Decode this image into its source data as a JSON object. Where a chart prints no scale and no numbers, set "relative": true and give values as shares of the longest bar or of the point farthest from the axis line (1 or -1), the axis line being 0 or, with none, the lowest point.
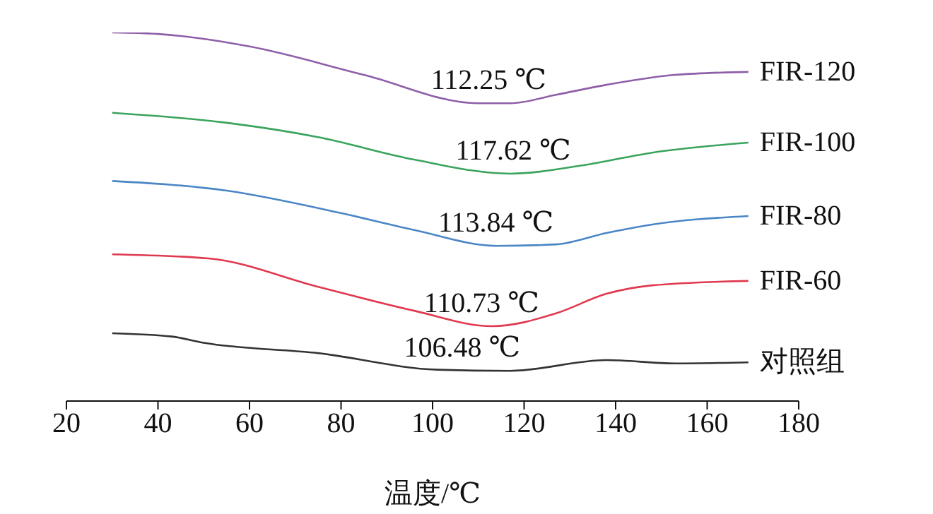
{
  "chart_data": {
    "type": "line",
    "relative": true,
    "xlabel": "温度/℃",
    "xlim": [
      20,
      180
    ],
    "xticks": [
      20,
      40,
      60,
      80,
      100,
      120,
      140,
      160,
      180
    ],
    "marker": "none",
    "line_style": "solid",
    "series": [
      {
        "name": "FIR-120",
        "color": "#8e5fa8",
        "x": [
          30,
          40,
          60,
          85,
          110,
          117,
          127,
          138,
          153,
          169
        ],
        "values": [
          1.0,
          0.996,
          0.962,
          0.885,
          0.808,
          0.808,
          0.831,
          0.858,
          0.885,
          0.893
        ]
      },
      {
        "name": "FIR-100",
        "color": "#3aa35c",
        "x": [
          30,
          55,
          75,
          96,
          117,
          133,
          148,
          169
        ],
        "values": [
          0.782,
          0.755,
          0.716,
          0.655,
          0.617,
          0.64,
          0.674,
          0.701
        ]
      },
      {
        "name": "FIR-80",
        "color": "#4a86c5",
        "x": [
          30,
          55,
          80,
          96,
          114,
          127,
          138,
          148,
          169
        ],
        "values": [
          0.597,
          0.571,
          0.51,
          0.464,
          0.421,
          0.425,
          0.456,
          0.479,
          0.502
        ]
      },
      {
        "name": "FIR-60",
        "color": "#e0394f",
        "x": [
          30,
          51,
          75,
          96,
          113,
          127,
          138,
          148,
          169
        ],
        "values": [
          0.398,
          0.387,
          0.31,
          0.245,
          0.203,
          0.238,
          0.291,
          0.314,
          0.326
        ]
      },
      {
        "name": "对照组",
        "color": "#333333",
        "x": [
          30,
          43,
          50,
          75,
          101,
          117,
          138,
          153,
          169
        ],
        "values": [
          0.184,
          0.175,
          0.158,
          0.13,
          0.085,
          0.082,
          0.111,
          0.102,
          0.105
        ]
      }
    ],
    "annotations": [
      {
        "text": "112.25 ℃",
        "x": 112.25,
        "y": 0.808
      },
      {
        "text": "117.62 ℃",
        "x": 117.62,
        "y": 0.617
      },
      {
        "text": "113.84 ℃",
        "x": 113.84,
        "y": 0.421
      },
      {
        "text": "110.73 ℃",
        "x": 110.73,
        "y": 0.203
      },
      {
        "text": "106.48 ℃",
        "x": 106.48,
        "y": 0.082
      }
    ]
  }
}
